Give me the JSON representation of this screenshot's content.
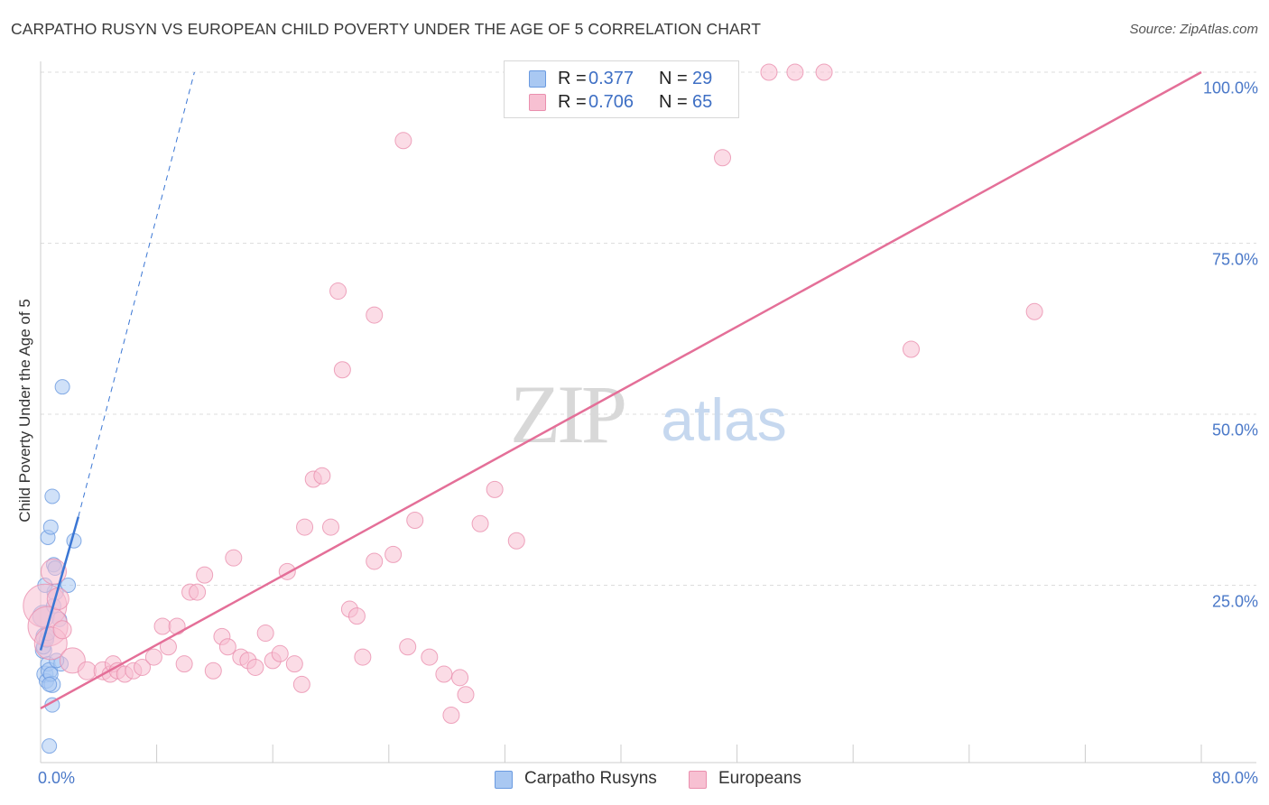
{
  "title": "CARPATHO RUSYN VS EUROPEAN CHILD POVERTY UNDER THE AGE OF 5 CORRELATION CHART",
  "source": "Source: ZipAtlas.com",
  "watermark": {
    "zip": "ZIP",
    "atlas": "atlas"
  },
  "colors": {
    "blue_fill": "#a9c8f2",
    "blue_stroke": "#6a9ae0",
    "blue_line": "#3a76d4",
    "pink_fill": "#f7c0d2",
    "pink_stroke": "#ea8fae",
    "pink_line": "#e46f98",
    "grid": "#dddddd",
    "tick_text": "#4a78c8"
  },
  "legend": {
    "rows": [
      {
        "r_label": "R = ",
        "r_value": "0.377",
        "n_label": "N = ",
        "n_value": "29",
        "color": "#a9c8f2",
        "stroke": "#6a9ae0"
      },
      {
        "r_label": "R = ",
        "r_value": "0.706",
        "n_label": "N = ",
        "n_value": "65",
        "color": "#f7c0d2",
        "stroke": "#ea8fae"
      }
    ]
  },
  "bottom_legend": [
    {
      "label": "Carpatho Rusyns",
      "color": "#a9c8f2",
      "stroke": "#6a9ae0"
    },
    {
      "label": "Europeans",
      "color": "#f7c0d2",
      "stroke": "#ea8fae"
    }
  ],
  "chart_data": {
    "type": "scatter",
    "title": "CARPATHO RUSYN VS EUROPEAN CHILD POVERTY UNDER THE AGE OF 5 CORRELATION CHART",
    "xlabel": "",
    "ylabel": "Child Poverty Under the Age of 5",
    "xlim": [
      0,
      80
    ],
    "ylim": [
      0,
      100
    ],
    "x_tick_labels": [
      "0.0%",
      "80.0%"
    ],
    "y_ticks": [
      {
        "value": 25,
        "label": "25.0%"
      },
      {
        "value": 50,
        "label": "50.0%"
      },
      {
        "value": 75,
        "label": "75.0%"
      },
      {
        "value": 100,
        "label": "100.0%"
      }
    ],
    "series": [
      {
        "name": "Carpatho Rusyns",
        "r": 0.377,
        "n": 29,
        "trend": {
          "x": [
            0,
            2.6
          ],
          "y": [
            15.5,
            35
          ]
        },
        "trend_extension": {
          "x": [
            2.6,
            10.6
          ],
          "y": [
            35,
            100
          ]
        },
        "points": [
          [
            0.2,
            20.5,
            12
          ],
          [
            0.3,
            17.5,
            10
          ],
          [
            0.2,
            15.5,
            9
          ],
          [
            0.3,
            12,
            9
          ],
          [
            0.4,
            11,
            8
          ],
          [
            0.5,
            13.5,
            8
          ],
          [
            0.6,
            12.5,
            9
          ],
          [
            0.8,
            10.5,
            9
          ],
          [
            0.5,
            32,
            8
          ],
          [
            0.7,
            33.5,
            8
          ],
          [
            0.8,
            38,
            8
          ],
          [
            0.9,
            28,
            8
          ],
          [
            1.0,
            27.5,
            8
          ],
          [
            1.0,
            24,
            9
          ],
          [
            1.3,
            20,
            8
          ],
          [
            1.4,
            13.5,
            8
          ],
          [
            1.5,
            54,
            8
          ],
          [
            1.9,
            25,
            8
          ],
          [
            2.3,
            31.5,
            8
          ],
          [
            0.8,
            7.5,
            8
          ],
          [
            0.6,
            1.5,
            8
          ],
          [
            0.2,
            16,
            8
          ],
          [
            0.4,
            17,
            8
          ],
          [
            0.7,
            12,
            8
          ],
          [
            0.3,
            25,
            8
          ],
          [
            0.5,
            18,
            8
          ],
          [
            0.9,
            22,
            8
          ],
          [
            0.6,
            10.5,
            8
          ],
          [
            1.1,
            14,
            8
          ]
        ]
      },
      {
        "name": "Europeans",
        "r": 0.706,
        "n": 65,
        "trend": {
          "x": [
            0,
            80
          ],
          "y": [
            7,
            100
          ]
        },
        "points": [
          [
            0.3,
            22,
            24
          ],
          [
            0.5,
            19,
            22
          ],
          [
            0.7,
            16.5,
            18
          ],
          [
            1.2,
            23,
            12
          ],
          [
            2.2,
            14,
            14
          ],
          [
            3.2,
            12.5,
            10
          ],
          [
            4.3,
            12.5,
            10
          ],
          [
            4.8,
            12,
            9
          ],
          [
            5.0,
            13.5,
            9
          ],
          [
            5.3,
            12.5,
            9
          ],
          [
            5.8,
            12,
            9
          ],
          [
            6.4,
            12.5,
            9
          ],
          [
            7.0,
            13,
            9
          ],
          [
            7.8,
            14.5,
            9
          ],
          [
            8.4,
            19,
            9
          ],
          [
            8.8,
            16,
            9
          ],
          [
            9.4,
            19,
            9
          ],
          [
            9.9,
            13.5,
            9
          ],
          [
            10.3,
            24,
            9
          ],
          [
            10.8,
            24,
            9
          ],
          [
            11.3,
            26.5,
            9
          ],
          [
            11.9,
            12.5,
            9
          ],
          [
            12.5,
            17.5,
            9
          ],
          [
            12.9,
            16,
            9
          ],
          [
            13.3,
            29,
            9
          ],
          [
            13.8,
            14.5,
            9
          ],
          [
            14.3,
            14,
            9
          ],
          [
            14.8,
            13,
            9
          ],
          [
            15.5,
            18,
            9
          ],
          [
            16.0,
            14,
            9
          ],
          [
            16.5,
            15,
            9
          ],
          [
            17.0,
            27,
            9
          ],
          [
            17.5,
            13.5,
            9
          ],
          [
            18.0,
            10.5,
            9
          ],
          [
            18.2,
            33.5,
            9
          ],
          [
            18.8,
            40.5,
            9
          ],
          [
            19.4,
            41,
            9
          ],
          [
            20.0,
            33.5,
            9
          ],
          [
            20.5,
            68,
            9
          ],
          [
            20.8,
            56.5,
            9
          ],
          [
            21.3,
            21.5,
            9
          ],
          [
            21.8,
            20.5,
            9
          ],
          [
            22.2,
            14.5,
            9
          ],
          [
            23.0,
            64.5,
            9
          ],
          [
            23.0,
            28.5,
            9
          ],
          [
            24.3,
            29.5,
            9
          ],
          [
            25.0,
            90,
            9
          ],
          [
            25.3,
            16,
            9
          ],
          [
            25.8,
            34.5,
            9
          ],
          [
            26.8,
            14.5,
            9
          ],
          [
            27.8,
            12,
            9
          ],
          [
            28.3,
            6,
            9
          ],
          [
            28.9,
            11.5,
            9
          ],
          [
            29.3,
            9,
            9
          ],
          [
            30.3,
            34,
            9
          ],
          [
            31.3,
            39,
            9
          ],
          [
            32.8,
            31.5,
            9
          ],
          [
            47.0,
            87.5,
            9
          ],
          [
            50.2,
            100,
            9
          ],
          [
            52.0,
            100,
            9
          ],
          [
            54.0,
            100,
            9
          ],
          [
            60.0,
            59.5,
            9
          ],
          [
            68.5,
            65,
            9
          ],
          [
            0.9,
            27,
            14
          ],
          [
            1.5,
            18.5,
            10
          ]
        ]
      }
    ]
  }
}
